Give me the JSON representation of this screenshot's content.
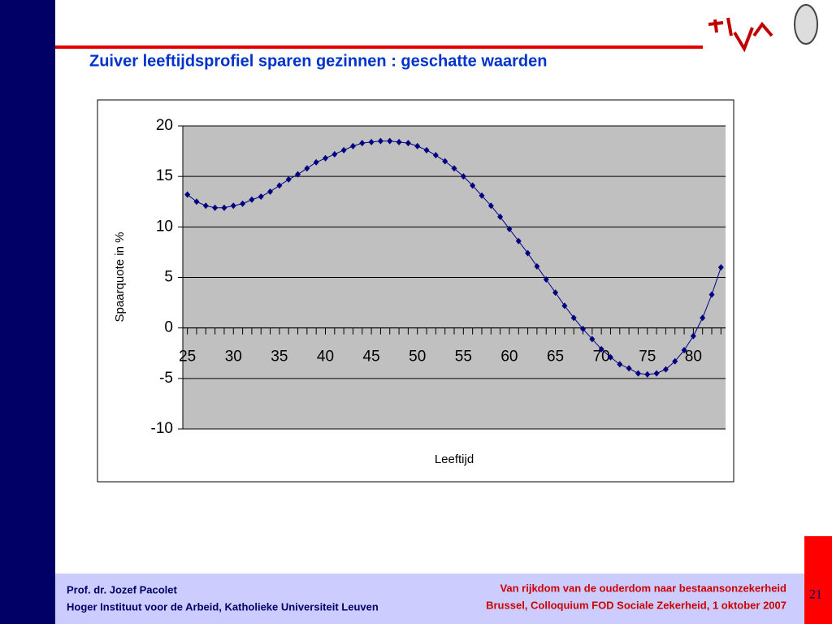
{
  "header": {
    "title": "Zuiver leeftijdsprofiel sparen gezinnen : geschatte waarden"
  },
  "chart_data": {
    "type": "line",
    "x": [
      25,
      26,
      27,
      28,
      29,
      30,
      31,
      32,
      33,
      34,
      35,
      36,
      37,
      38,
      39,
      40,
      41,
      42,
      43,
      44,
      45,
      46,
      47,
      48,
      49,
      50,
      51,
      52,
      53,
      54,
      55,
      56,
      57,
      58,
      59,
      60,
      61,
      62,
      63,
      64,
      65,
      66,
      67,
      68,
      69,
      70,
      71,
      72,
      73,
      74,
      75,
      76,
      77,
      78,
      79,
      80,
      81,
      82,
      83
    ],
    "series": [
      {
        "name": null,
        "color": "#000080",
        "values": [
          13.2,
          12.5,
          12.1,
          11.9,
          11.9,
          12.1,
          12.3,
          12.7,
          13.0,
          13.5,
          14.1,
          14.7,
          15.2,
          15.8,
          16.4,
          16.8,
          17.2,
          17.6,
          18.0,
          18.3,
          18.4,
          18.5,
          18.5,
          18.4,
          18.3,
          18.0,
          17.6,
          17.1,
          16.5,
          15.8,
          15.0,
          14.1,
          13.1,
          12.1,
          11.0,
          9.8,
          8.6,
          7.4,
          6.1,
          4.8,
          3.5,
          2.2,
          1.0,
          -0.1,
          -1.1,
          -2.1,
          -2.9,
          -3.6,
          -4.0,
          -4.5,
          -4.6,
          -4.5,
          -4.1,
          -3.3,
          -2.2,
          -0.8,
          1.0,
          3.3,
          6.0
        ]
      }
    ],
    "xlim": [
      24.5,
      83.5
    ],
    "xticks": [
      25,
      30,
      35,
      40,
      45,
      50,
      55,
      60,
      65,
      70,
      75,
      80
    ],
    "ylim": [
      -10,
      20
    ],
    "yticks": [
      -10,
      -5,
      0,
      5,
      10,
      15,
      20
    ],
    "grid": true,
    "xlabel": "Leeftijd",
    "ylabel": "Spaarquote in %"
  },
  "footer": {
    "author": "Prof. dr. Jozef Pacolet",
    "institute": "Hoger Instituut voor de Arbeid, Katholieke Universiteit Leuven",
    "event_title": "Van rijkdom van de ouderdom naar bestaansonzekerheid",
    "event_place": "Brussel, Colloquium FOD Sociale Zekerheid, 1 oktober 2007",
    "page": "21"
  }
}
